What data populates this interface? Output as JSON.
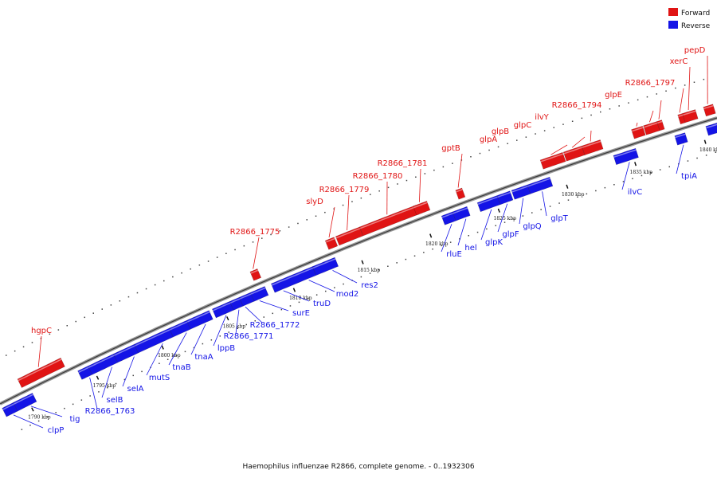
{
  "colors": {
    "forward": "#e01414",
    "reverse": "#1414e6",
    "backbone": "#808080"
  },
  "legend": {
    "forward": "Forward",
    "reverse": "Reverse"
  },
  "caption": "Haemophilus influenzae R2866, complete genome. - 0..1932306",
  "ticks": [
    "1790 kbp",
    "1795 kbp",
    "1800 kbp",
    "1805 kbp",
    "1810 kbp",
    "1815 kbp",
    "1820 kbp",
    "1825 kbp",
    "1830 kbp",
    "1835 kbp",
    "1840 kbp"
  ],
  "forward_genes": [
    "hgpC",
    "R2866_1775",
    "slyD",
    "R2866_1779",
    "R2866_1780",
    "R2866_1781",
    "gptB",
    "glpA",
    "glpB",
    "glpC",
    "ilvY",
    "R2866_1794",
    "glpE",
    "R2866_1797",
    "xerC",
    "pepD"
  ],
  "reverse_genes": [
    "clpP",
    "tig",
    "R2866_1763",
    "selB",
    "selA",
    "mutS",
    "tnaB",
    "tnaA",
    "lppB",
    "R2866_1771",
    "R2866_1772",
    "surE",
    "truD",
    "mod2",
    "res2",
    "rluE",
    "hel",
    "glpK",
    "glpF",
    "glpQ",
    "glpT",
    "ilvC",
    "tpiA"
  ]
}
